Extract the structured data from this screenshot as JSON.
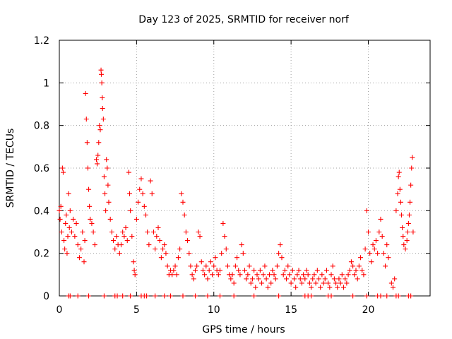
{
  "chart_data": {
    "type": "scatter",
    "title": "Day 123 of 2025, SRMTID for receiver norf",
    "xlabel": "GPS time / hours",
    "ylabel": "SRMTID / TECUs",
    "xlim": [
      0,
      24
    ],
    "ylim": [
      0,
      1.2
    ],
    "x_ticks": [
      0,
      5,
      10,
      15,
      20
    ],
    "x_tick_labels": [
      "0",
      "5",
      "10",
      "15",
      "20"
    ],
    "y_ticks": [
      0,
      0.2,
      0.4,
      0.6,
      0.8,
      1.0,
      1.2
    ],
    "y_tick_labels": [
      "0",
      "0.2",
      "0.4",
      "0.6",
      "0.8",
      "1",
      "1.2"
    ],
    "grid": true,
    "marker": "+",
    "color": "#ff0000",
    "series": [
      {
        "name": "SRMTID",
        "points": [
          [
            0.0,
            0.4
          ],
          [
            0.05,
            0.36
          ],
          [
            0.1,
            0.42
          ],
          [
            0.15,
            0.3
          ],
          [
            0.2,
            0.6
          ],
          [
            0.25,
            0.58
          ],
          [
            0.3,
            0.26
          ],
          [
            0.35,
            0.22
          ],
          [
            0.4,
            0.34
          ],
          [
            0.45,
            0.38
          ],
          [
            0.5,
            0.2
          ],
          [
            0.55,
            0.28
          ],
          [
            0.6,
            0.48
          ],
          [
            0.65,
            0.32
          ],
          [
            0.7,
            0.4
          ],
          [
            0.8,
            0.3
          ],
          [
            0.9,
            0.36
          ],
          [
            1.0,
            0.28
          ],
          [
            1.1,
            0.34
          ],
          [
            1.2,
            0.24
          ],
          [
            1.3,
            0.18
          ],
          [
            1.4,
            0.22
          ],
          [
            1.5,
            0.3
          ],
          [
            1.6,
            0.16
          ],
          [
            1.65,
            0.26
          ],
          [
            1.7,
            0.95
          ],
          [
            1.75,
            0.83
          ],
          [
            1.8,
            0.72
          ],
          [
            1.85,
            0.6
          ],
          [
            1.9,
            0.5
          ],
          [
            1.95,
            0.42
          ],
          [
            2.0,
            0.36
          ],
          [
            2.1,
            0.34
          ],
          [
            2.2,
            0.3
          ],
          [
            2.3,
            0.24
          ],
          [
            2.4,
            0.64
          ],
          [
            2.45,
            0.62
          ],
          [
            2.5,
            0.66
          ],
          [
            2.55,
            0.72
          ],
          [
            2.6,
            0.8
          ],
          [
            2.65,
            0.78
          ],
          [
            2.7,
            1.06
          ],
          [
            2.72,
            1.04
          ],
          [
            2.75,
            1.0
          ],
          [
            2.78,
            0.93
          ],
          [
            2.8,
            0.88
          ],
          [
            2.85,
            0.83
          ],
          [
            2.9,
            0.56
          ],
          [
            2.95,
            0.48
          ],
          [
            3.0,
            0.4
          ],
          [
            3.05,
            0.64
          ],
          [
            3.1,
            0.6
          ],
          [
            3.15,
            0.52
          ],
          [
            3.2,
            0.44
          ],
          [
            3.3,
            0.36
          ],
          [
            3.4,
            0.3
          ],
          [
            3.5,
            0.26
          ],
          [
            3.6,
            0.22
          ],
          [
            3.7,
            0.28
          ],
          [
            3.8,
            0.24
          ],
          [
            3.9,
            0.2
          ],
          [
            4.0,
            0.24
          ],
          [
            4.1,
            0.3
          ],
          [
            4.2,
            0.28
          ],
          [
            4.3,
            0.32
          ],
          [
            4.4,
            0.26
          ],
          [
            4.5,
            0.58
          ],
          [
            4.55,
            0.48
          ],
          [
            4.6,
            0.4
          ],
          [
            4.7,
            0.28
          ],
          [
            4.8,
            0.16
          ],
          [
            4.85,
            0.12
          ],
          [
            4.9,
            0.1
          ],
          [
            5.0,
            0.36
          ],
          [
            5.1,
            0.44
          ],
          [
            5.2,
            0.5
          ],
          [
            5.3,
            0.55
          ],
          [
            5.4,
            0.48
          ],
          [
            5.5,
            0.42
          ],
          [
            5.6,
            0.38
          ],
          [
            5.7,
            0.3
          ],
          [
            5.8,
            0.24
          ],
          [
            5.9,
            0.54
          ],
          [
            6.0,
            0.48
          ],
          [
            6.1,
            0.3
          ],
          [
            6.2,
            0.22
          ],
          [
            6.3,
            0.28
          ],
          [
            6.4,
            0.32
          ],
          [
            6.5,
            0.26
          ],
          [
            6.6,
            0.18
          ],
          [
            6.7,
            0.22
          ],
          [
            6.8,
            0.24
          ],
          [
            6.9,
            0.2
          ],
          [
            7.0,
            0.14
          ],
          [
            7.1,
            0.1
          ],
          [
            7.2,
            0.12
          ],
          [
            7.3,
            0.1
          ],
          [
            7.4,
            0.12
          ],
          [
            7.5,
            0.14
          ],
          [
            7.6,
            0.1
          ],
          [
            7.7,
            0.18
          ],
          [
            7.8,
            0.22
          ],
          [
            7.9,
            0.48
          ],
          [
            8.0,
            0.44
          ],
          [
            8.1,
            0.38
          ],
          [
            8.2,
            0.3
          ],
          [
            8.3,
            0.26
          ],
          [
            8.4,
            0.2
          ],
          [
            8.5,
            0.14
          ],
          [
            8.6,
            0.1
          ],
          [
            8.7,
            0.08
          ],
          [
            8.8,
            0.12
          ],
          [
            8.9,
            0.14
          ],
          [
            9.0,
            0.3
          ],
          [
            9.1,
            0.28
          ],
          [
            9.2,
            0.16
          ],
          [
            9.3,
            0.12
          ],
          [
            9.4,
            0.1
          ],
          [
            9.5,
            0.14
          ],
          [
            9.6,
            0.08
          ],
          [
            9.7,
            0.12
          ],
          [
            9.8,
            0.16
          ],
          [
            9.9,
            0.1
          ],
          [
            10.0,
            0.14
          ],
          [
            10.1,
            0.18
          ],
          [
            10.2,
            0.12
          ],
          [
            10.3,
            0.1
          ],
          [
            10.4,
            0.12
          ],
          [
            10.5,
            0.2
          ],
          [
            10.6,
            0.34
          ],
          [
            10.7,
            0.28
          ],
          [
            10.8,
            0.22
          ],
          [
            10.9,
            0.14
          ],
          [
            11.0,
            0.1
          ],
          [
            11.1,
            0.08
          ],
          [
            11.2,
            0.1
          ],
          [
            11.3,
            0.06
          ],
          [
            11.4,
            0.14
          ],
          [
            11.5,
            0.18
          ],
          [
            11.6,
            0.12
          ],
          [
            11.7,
            0.1
          ],
          [
            11.8,
            0.24
          ],
          [
            11.9,
            0.2
          ],
          [
            12.0,
            0.12
          ],
          [
            12.1,
            0.08
          ],
          [
            12.2,
            0.1
          ],
          [
            12.3,
            0.14
          ],
          [
            12.4,
            0.06
          ],
          [
            12.5,
            0.08
          ],
          [
            12.6,
            0.12
          ],
          [
            12.7,
            0.04
          ],
          [
            12.8,
            0.1
          ],
          [
            12.9,
            0.08
          ],
          [
            13.0,
            0.12
          ],
          [
            13.1,
            0.06
          ],
          [
            13.2,
            0.1
          ],
          [
            13.3,
            0.14
          ],
          [
            13.4,
            0.08
          ],
          [
            13.5,
            0.04
          ],
          [
            13.6,
            0.1
          ],
          [
            13.7,
            0.06
          ],
          [
            13.8,
            0.12
          ],
          [
            13.9,
            0.1
          ],
          [
            14.0,
            0.08
          ],
          [
            14.1,
            0.14
          ],
          [
            14.2,
            0.2
          ],
          [
            14.3,
            0.24
          ],
          [
            14.4,
            0.18
          ],
          [
            14.5,
            0.1
          ],
          [
            14.6,
            0.12
          ],
          [
            14.7,
            0.08
          ],
          [
            14.8,
            0.14
          ],
          [
            14.9,
            0.1
          ],
          [
            15.0,
            0.06
          ],
          [
            15.1,
            0.12
          ],
          [
            15.2,
            0.08
          ],
          [
            15.3,
            0.04
          ],
          [
            15.4,
            0.1
          ],
          [
            15.5,
            0.12
          ],
          [
            15.6,
            0.08
          ],
          [
            15.7,
            0.06
          ],
          [
            15.8,
            0.1
          ],
          [
            15.9,
            0.08
          ],
          [
            16.0,
            0.12
          ],
          [
            16.1,
            0.1
          ],
          [
            16.2,
            0.06
          ],
          [
            16.3,
            0.04
          ],
          [
            16.4,
            0.08
          ],
          [
            16.5,
            0.1
          ],
          [
            16.6,
            0.06
          ],
          [
            16.7,
            0.12
          ],
          [
            16.8,
            0.08
          ],
          [
            16.9,
            0.04
          ],
          [
            17.0,
            0.1
          ],
          [
            17.1,
            0.06
          ],
          [
            17.2,
            0.08
          ],
          [
            17.3,
            0.12
          ],
          [
            17.4,
            0.06
          ],
          [
            17.5,
            0.04
          ],
          [
            17.6,
            0.1
          ],
          [
            17.7,
            0.14
          ],
          [
            17.8,
            0.08
          ],
          [
            17.9,
            0.06
          ],
          [
            18.0,
            0.04
          ],
          [
            18.1,
            0.08
          ],
          [
            18.2,
            0.06
          ],
          [
            18.3,
            0.1
          ],
          [
            18.4,
            0.04
          ],
          [
            18.5,
            0.08
          ],
          [
            18.6,
            0.06
          ],
          [
            18.7,
            0.1
          ],
          [
            18.8,
            0.12
          ],
          [
            18.9,
            0.16
          ],
          [
            19.0,
            0.14
          ],
          [
            19.1,
            0.1
          ],
          [
            19.2,
            0.12
          ],
          [
            19.3,
            0.08
          ],
          [
            19.4,
            0.14
          ],
          [
            19.5,
            0.18
          ],
          [
            19.6,
            0.12
          ],
          [
            19.7,
            0.1
          ],
          [
            19.8,
            0.22
          ],
          [
            19.9,
            0.4
          ],
          [
            20.0,
            0.3
          ],
          [
            20.1,
            0.2
          ],
          [
            20.2,
            0.16
          ],
          [
            20.3,
            0.24
          ],
          [
            20.4,
            0.22
          ],
          [
            20.5,
            0.26
          ],
          [
            20.6,
            0.2
          ],
          [
            20.7,
            0.3
          ],
          [
            20.8,
            0.36
          ],
          [
            20.9,
            0.28
          ],
          [
            21.0,
            0.2
          ],
          [
            21.1,
            0.14
          ],
          [
            21.2,
            0.24
          ],
          [
            21.3,
            0.18
          ],
          [
            21.5,
            0.06
          ],
          [
            21.6,
            0.04
          ],
          [
            21.7,
            0.08
          ],
          [
            21.8,
            0.4
          ],
          [
            21.9,
            0.48
          ],
          [
            21.95,
            0.56
          ],
          [
            22.0,
            0.58
          ],
          [
            22.05,
            0.5
          ],
          [
            22.1,
            0.44
          ],
          [
            22.15,
            0.38
          ],
          [
            22.2,
            0.32
          ],
          [
            22.25,
            0.28
          ],
          [
            22.3,
            0.24
          ],
          [
            22.4,
            0.22
          ],
          [
            22.5,
            0.26
          ],
          [
            22.55,
            0.3
          ],
          [
            22.6,
            0.34
          ],
          [
            22.65,
            0.38
          ],
          [
            22.7,
            0.44
          ],
          [
            22.75,
            0.52
          ],
          [
            22.8,
            0.6
          ],
          [
            22.85,
            0.65
          ],
          [
            22.9,
            0.3
          ],
          [
            0.6,
            0.0
          ],
          [
            0.7,
            0.0
          ],
          [
            1.2,
            0.0
          ],
          [
            1.9,
            0.0
          ],
          [
            2.9,
            0.0
          ],
          [
            3.6,
            0.0
          ],
          [
            3.75,
            0.0
          ],
          [
            4.1,
            0.0
          ],
          [
            4.6,
            0.0
          ],
          [
            5.3,
            0.0
          ],
          [
            5.5,
            0.0
          ],
          [
            5.65,
            0.0
          ],
          [
            6.2,
            0.0
          ],
          [
            6.8,
            0.0
          ],
          [
            7.2,
            0.0
          ],
          [
            8.0,
            0.0
          ],
          [
            8.8,
            0.0
          ],
          [
            9.6,
            0.0
          ],
          [
            10.4,
            0.0
          ],
          [
            11.3,
            0.0
          ],
          [
            12.6,
            0.0
          ],
          [
            14.2,
            0.0
          ],
          [
            15.9,
            0.0
          ],
          [
            16.1,
            0.0
          ],
          [
            16.3,
            0.0
          ],
          [
            17.4,
            0.0
          ],
          [
            17.6,
            0.0
          ],
          [
            19.0,
            0.0
          ],
          [
            19.9,
            0.0
          ],
          [
            20.6,
            0.0
          ],
          [
            20.8,
            0.0
          ],
          [
            21.2,
            0.0
          ],
          [
            21.8,
            0.0
          ],
          [
            21.95,
            0.0
          ],
          [
            22.6,
            0.0
          ],
          [
            22.75,
            0.0
          ]
        ]
      }
    ]
  }
}
